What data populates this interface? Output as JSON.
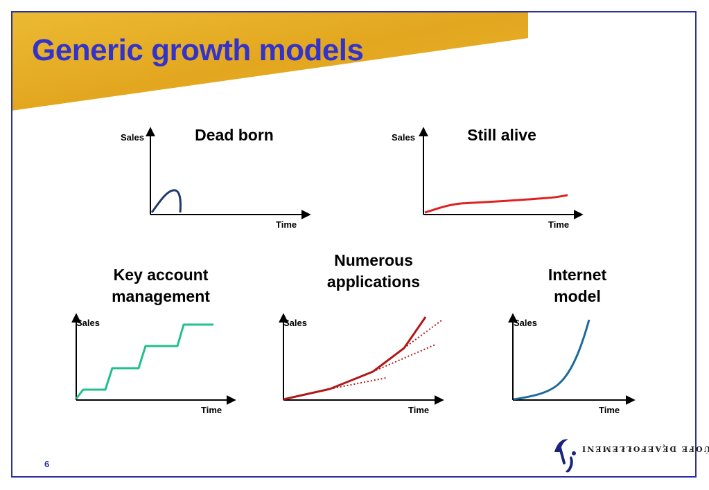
{
  "slide": {
    "title": "Generic growth models",
    "page_number": "6",
    "logo_text": "ÚOFE DĘAEFOŁŁEMENI",
    "colors": {
      "title": "#3333cc",
      "frame": "#2b2fa0",
      "banner": "#f0b020"
    }
  },
  "panels": [
    {
      "id": "dead-born",
      "title_lines": [
        "Dead born"
      ],
      "ylabel": "Sales",
      "xlabel": "Time",
      "curve_color": "#1f3a6e"
    },
    {
      "id": "still-alive",
      "title_lines": [
        "Still alive"
      ],
      "ylabel": "Sales",
      "xlabel": "Time",
      "curve_color": "#e02020"
    },
    {
      "id": "key-account",
      "title_lines": [
        "Key account",
        "management"
      ],
      "ylabel": "Sales",
      "xlabel": "Time",
      "curve_color": "#1fc08a"
    },
    {
      "id": "numerous-applications",
      "title_lines": [
        "Numerous",
        "applications"
      ],
      "ylabel": "Sales",
      "xlabel": "Time",
      "curve_color": "#b01818"
    },
    {
      "id": "internet-model",
      "title_lines": [
        "Internet",
        "model"
      ],
      "ylabel": "Sales",
      "xlabel": "Time",
      "curve_color": "#1a6a9a"
    }
  ]
}
